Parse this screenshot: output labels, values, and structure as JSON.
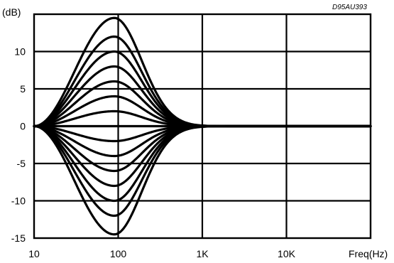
{
  "chart_data": {
    "type": "line",
    "document_code": "D95AU393",
    "ylabel": "(dB)",
    "xlabel": "Freq(Hz)",
    "x_scale": "log",
    "xlim": [
      10,
      100000
    ],
    "ylim": [
      -15,
      15
    ],
    "x_ticks": [
      10,
      100,
      1000,
      10000
    ],
    "x_tick_labels": [
      "10",
      "100",
      "1K",
      "10K"
    ],
    "y_ticks": [
      10,
      5,
      0,
      -5,
      -10,
      -15
    ],
    "y_tick_labels": [
      "10",
      "5",
      "0",
      "-5",
      "-10",
      "-15"
    ],
    "grid": true,
    "center_frequency": 90,
    "series": [
      {
        "peak_gain": 14.5
      },
      {
        "peak_gain": 12
      },
      {
        "peak_gain": 10
      },
      {
        "peak_gain": 8
      },
      {
        "peak_gain": 6
      },
      {
        "peak_gain": 4
      },
      {
        "peak_gain": 2
      },
      {
        "peak_gain": 0
      },
      {
        "peak_gain": -2
      },
      {
        "peak_gain": -4
      },
      {
        "peak_gain": -6
      },
      {
        "peak_gain": -8
      },
      {
        "peak_gain": -10
      },
      {
        "peak_gain": -12
      },
      {
        "peak_gain": -14.5
      }
    ]
  }
}
